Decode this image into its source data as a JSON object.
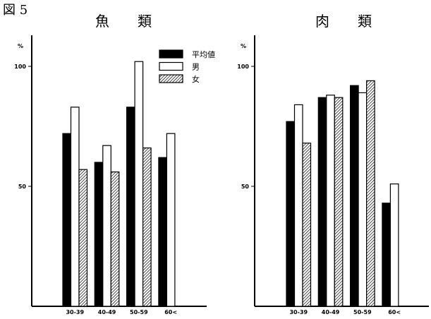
{
  "figure_label": "図 5",
  "chart_data": [
    {
      "type": "bar",
      "title": "魚　　類",
      "ylabel": "%",
      "ylim": [
        0,
        110
      ],
      "yticks": [
        "50",
        "100"
      ],
      "categories": [
        "30-39",
        "40-49",
        "50-59",
        "60<"
      ],
      "series": [
        {
          "name": "平均値",
          "style": "black",
          "values": [
            72,
            60,
            83,
            62
          ]
        },
        {
          "name": "男",
          "style": "white",
          "values": [
            83,
            67,
            102,
            72
          ]
        },
        {
          "name": "女",
          "style": "hatched",
          "values": [
            57,
            56,
            66,
            null
          ]
        }
      ],
      "legend": "top-right"
    },
    {
      "type": "bar",
      "title": "肉　　類",
      "ylabel": "%",
      "ylim": [
        0,
        110
      ],
      "yticks": [
        "50",
        "100"
      ],
      "categories": [
        "30-39",
        "40-49",
        "50-59",
        "60<"
      ],
      "series": [
        {
          "name": "平均値",
          "style": "black",
          "values": [
            77,
            87,
            92,
            43
          ]
        },
        {
          "name": "男",
          "style": "white",
          "values": [
            84,
            88,
            89,
            51
          ]
        },
        {
          "name": "女",
          "style": "hatched",
          "values": [
            68,
            87,
            94,
            null
          ]
        }
      ]
    }
  ]
}
